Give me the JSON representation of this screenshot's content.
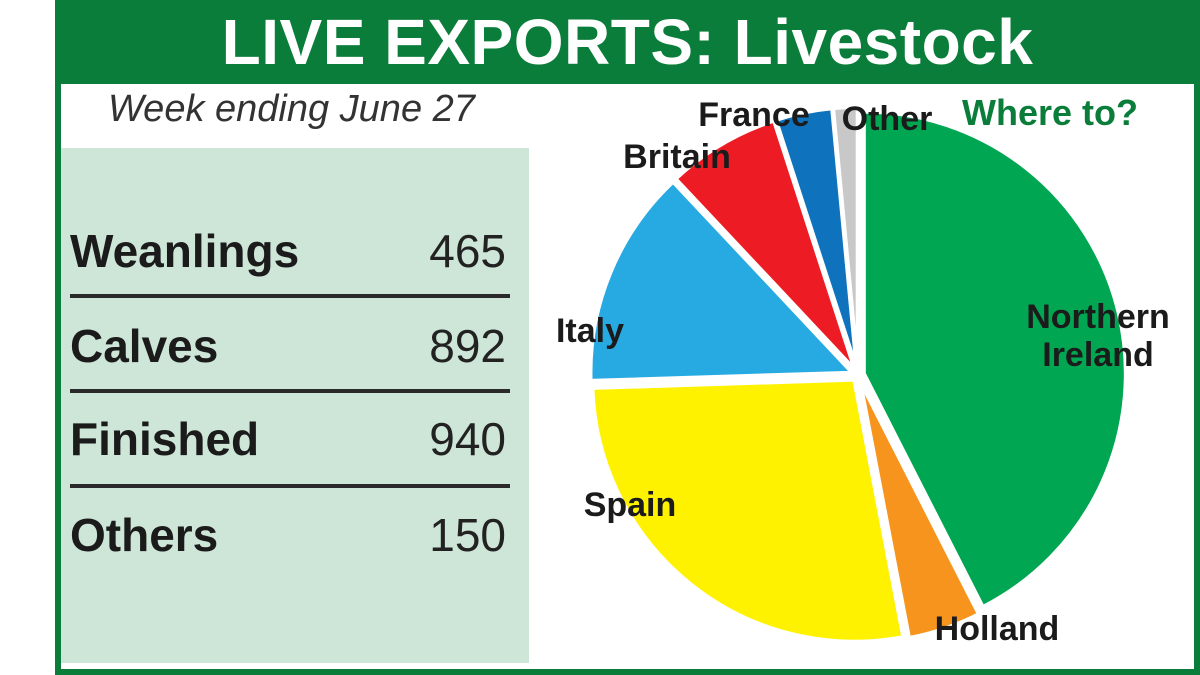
{
  "header": {
    "title": "LIVE EXPORTS: Livestock"
  },
  "subtitle": "Week ending June 27",
  "table": {
    "rows": [
      {
        "label": "Weanlings",
        "value": "465"
      },
      {
        "label": "Calves",
        "value": "892"
      },
      {
        "label": "Finished",
        "value": "940"
      },
      {
        "label": "Others",
        "value": "150"
      }
    ]
  },
  "colors": {
    "brand_green": "#0b7d3a",
    "panel": "#cde6d8"
  },
  "chart_data": {
    "type": "pie",
    "title": "Where to?",
    "start_angle_deg": 0,
    "direction": "clockwise",
    "slices": [
      {
        "label": "Northern Ireland",
        "value": 42.5,
        "color": "#00a651"
      },
      {
        "label": "Holland",
        "value": 4.5,
        "color": "#f7941d"
      },
      {
        "label": "Spain",
        "value": 27.5,
        "color": "#fff200"
      },
      {
        "label": "Italy",
        "value": 13.5,
        "color": "#27aae1"
      },
      {
        "label": "Britain",
        "value": 7.0,
        "color": "#ed1c24"
      },
      {
        "label": "France",
        "value": 3.5,
        "color": "#0e72bd"
      },
      {
        "label": "Other",
        "value": 1.5,
        "color": "#c8c8c8"
      }
    ]
  }
}
